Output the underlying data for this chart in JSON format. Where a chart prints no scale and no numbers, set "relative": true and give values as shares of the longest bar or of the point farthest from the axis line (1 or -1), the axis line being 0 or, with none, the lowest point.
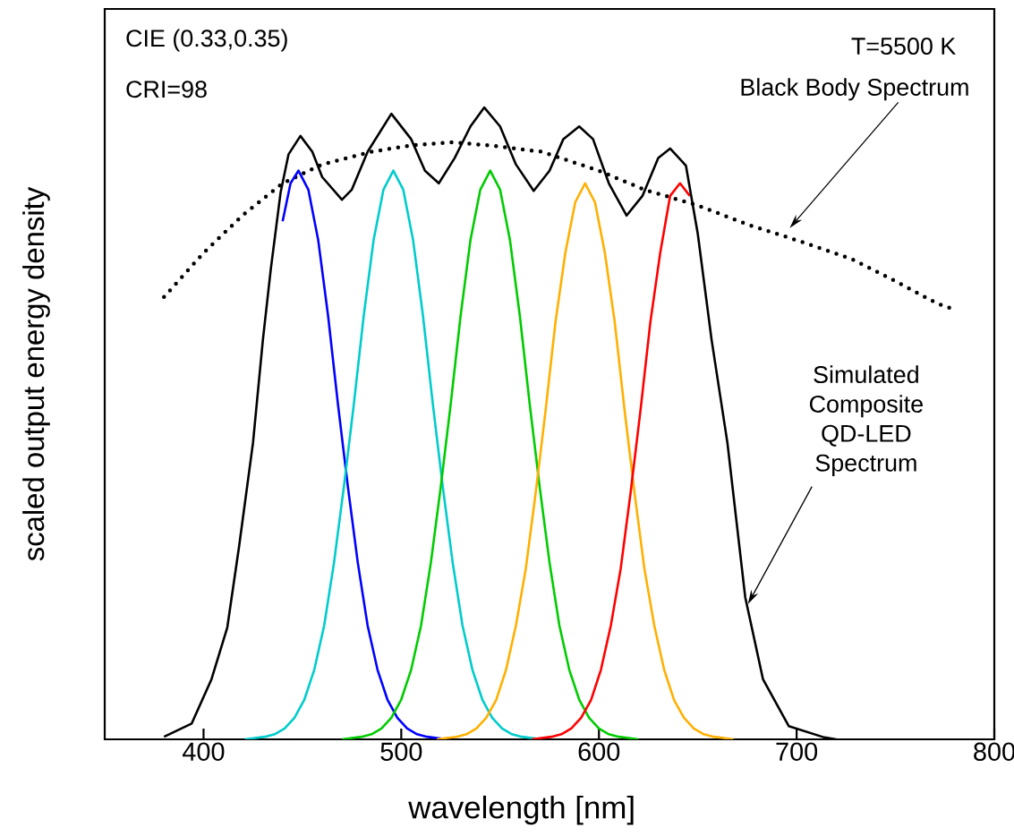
{
  "chart_data": {
    "type": "line",
    "relative": true,
    "xlabel": "wavelength [nm]",
    "ylabel": "scaled output energy density",
    "xlim": [
      350,
      800
    ],
    "xticks": [
      400,
      500,
      600,
      700,
      800
    ],
    "annotations": [
      "CIE (0.33,0.35)",
      "CRI=98",
      "T=5500 K",
      "Black Body Spectrum",
      "Simulated Composite QD-LED Spectrum"
    ],
    "series": [
      {
        "color": "#000000",
        "line_style": "dotted",
        "x": [
          380,
          400,
          420,
          440,
          460,
          485,
          505,
          525,
          545,
          571,
          600,
          623,
          650,
          675,
          700,
          728,
          750,
          771,
          780
        ],
        "values": [
          0.7,
          0.77,
          0.83,
          0.88,
          0.91,
          0.93,
          0.94,
          0.945,
          0.94,
          0.93,
          0.9,
          0.87,
          0.845,
          0.815,
          0.79,
          0.76,
          0.725,
          0.69,
          0.68
        ]
      },
      {
        "color": "#0000ff",
        "x": [
          440,
          444,
          448,
          453,
          458,
          463,
          468,
          473,
          478,
          483,
          488,
          493,
          498,
          503,
          508,
          513,
          518,
          523
        ],
        "values": [
          0.82,
          0.88,
          0.9,
          0.87,
          0.79,
          0.67,
          0.53,
          0.4,
          0.28,
          0.18,
          0.11,
          0.063,
          0.034,
          0.017,
          0.008,
          0.004,
          0.002,
          0
        ]
      },
      {
        "color": "#00cccc",
        "x": [
          421,
          426,
          431,
          436,
          441,
          446,
          451,
          456,
          461,
          466,
          471,
          476,
          481,
          486,
          491,
          496,
          501,
          506,
          511,
          516,
          521,
          526,
          531,
          536,
          541,
          546,
          551,
          556,
          561,
          566,
          571
        ],
        "values": [
          0,
          0.002,
          0.004,
          0.008,
          0.017,
          0.034,
          0.063,
          0.11,
          0.18,
          0.28,
          0.4,
          0.53,
          0.67,
          0.79,
          0.87,
          0.9,
          0.87,
          0.79,
          0.67,
          0.53,
          0.4,
          0.28,
          0.18,
          0.11,
          0.063,
          0.034,
          0.017,
          0.008,
          0.004,
          0.002,
          0
        ]
      },
      {
        "color": "#00cc00",
        "x": [
          470,
          475,
          480,
          485,
          490,
          495,
          500,
          505,
          510,
          515,
          520,
          525,
          530,
          535,
          540,
          545,
          550,
          555,
          560,
          565,
          570,
          575,
          580,
          585,
          590,
          595,
          600,
          605,
          610,
          615,
          620
        ],
        "values": [
          0,
          0.002,
          0.004,
          0.008,
          0.017,
          0.034,
          0.063,
          0.11,
          0.18,
          0.28,
          0.4,
          0.53,
          0.67,
          0.79,
          0.87,
          0.9,
          0.87,
          0.79,
          0.67,
          0.53,
          0.4,
          0.28,
          0.18,
          0.11,
          0.063,
          0.034,
          0.017,
          0.008,
          0.004,
          0.002,
          0
        ]
      },
      {
        "color": "#ffb000",
        "x": [
          518,
          523,
          528,
          533,
          538,
          543,
          548,
          553,
          558,
          563,
          568,
          573,
          578,
          583,
          588,
          593,
          598,
          603,
          608,
          613,
          618,
          623,
          628,
          633,
          638,
          643,
          648,
          653,
          658,
          663,
          668
        ],
        "values": [
          0,
          0.002,
          0.004,
          0.008,
          0.017,
          0.034,
          0.062,
          0.11,
          0.18,
          0.27,
          0.39,
          0.52,
          0.66,
          0.77,
          0.85,
          0.88,
          0.85,
          0.77,
          0.66,
          0.52,
          0.39,
          0.27,
          0.18,
          0.11,
          0.062,
          0.034,
          0.017,
          0.008,
          0.004,
          0.002,
          0
        ]
      },
      {
        "color": "#ff0000",
        "x": [
          566,
          571,
          576,
          581,
          586,
          591,
          596,
          601,
          606,
          611,
          616,
          621,
          626,
          631,
          636,
          641,
          646
        ],
        "values": [
          0,
          0.002,
          0.004,
          0.008,
          0.017,
          0.034,
          0.062,
          0.11,
          0.18,
          0.27,
          0.39,
          0.52,
          0.66,
          0.77,
          0.86,
          0.88,
          0.86
        ]
      },
      {
        "color": "#000000",
        "x": [
          380,
          394,
          404,
          412,
          418,
          425,
          430,
          434,
          439,
          443,
          449,
          455,
          460,
          470,
          475,
          483,
          495,
          505,
          512,
          519,
          527,
          535,
          542,
          550,
          558,
          567,
          575,
          582,
          590,
          597,
          605,
          614,
          622,
          630,
          636,
          644,
          650,
          657,
          665,
          674,
          683,
          696,
          714,
          720
        ],
        "values": [
          0.004,
          0.025,
          0.095,
          0.177,
          0.306,
          0.469,
          0.632,
          0.744,
          0.866,
          0.926,
          0.955,
          0.93,
          0.89,
          0.854,
          0.87,
          0.93,
          0.99,
          0.95,
          0.9,
          0.88,
          0.92,
          0.97,
          1.0,
          0.97,
          0.91,
          0.868,
          0.9,
          0.95,
          0.97,
          0.95,
          0.88,
          0.829,
          0.86,
          0.92,
          0.935,
          0.908,
          0.8,
          0.632,
          0.469,
          0.225,
          0.095,
          0.021,
          0.003,
          0
        ]
      }
    ]
  }
}
